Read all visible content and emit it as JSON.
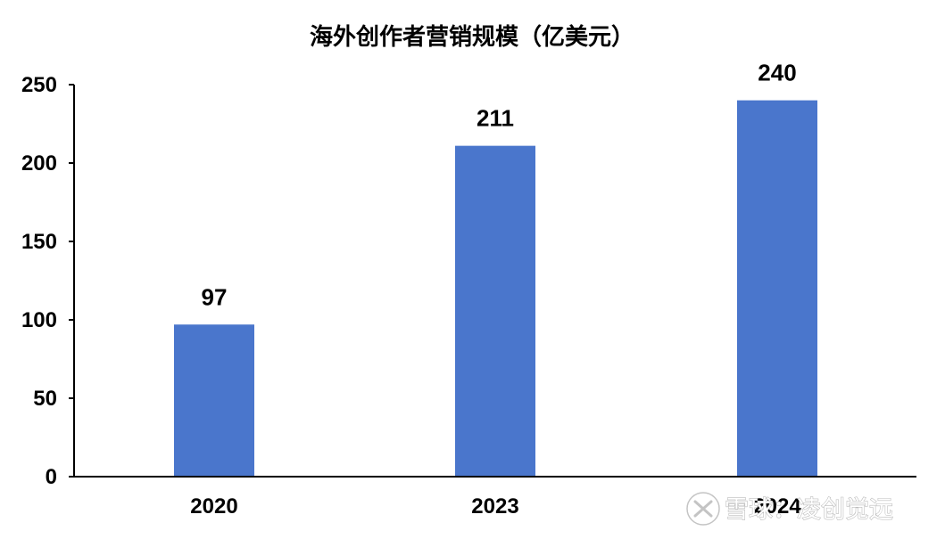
{
  "chart_data": {
    "type": "bar",
    "title": "海外创作者营销规模（亿美元）",
    "categories": [
      "2020",
      "2023",
      "2024"
    ],
    "values": [
      97,
      211,
      240
    ],
    "data_labels": [
      "97",
      "211",
      "240"
    ],
    "ylim": [
      0,
      250
    ],
    "yticks": [
      0,
      50,
      100,
      150,
      200,
      250
    ],
    "xlabel": "",
    "ylabel": "",
    "grid": false,
    "legend": "none",
    "bar_color": "#4a76cc"
  },
  "watermark": {
    "text": "雪球：凌创觉远",
    "icon": "xueqiu-snowball-logo-icon"
  }
}
